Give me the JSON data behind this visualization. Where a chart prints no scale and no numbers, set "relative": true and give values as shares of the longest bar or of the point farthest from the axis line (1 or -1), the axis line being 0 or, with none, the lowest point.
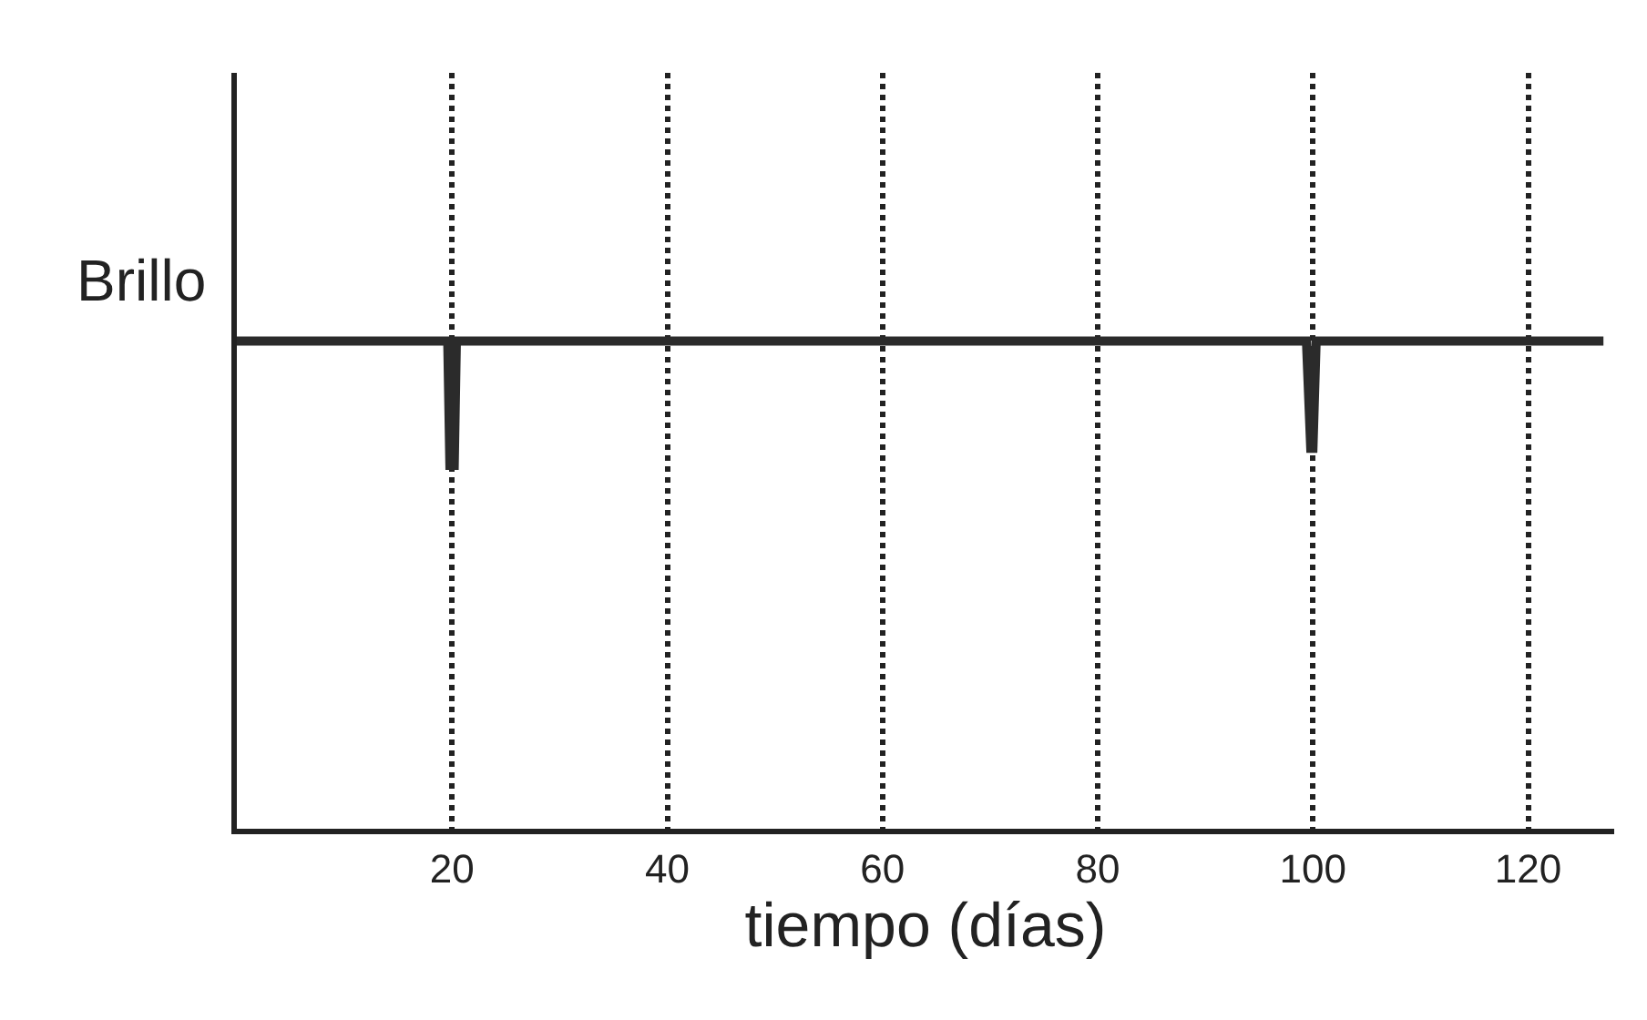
{
  "chart_data": {
    "type": "line",
    "relative": true,
    "xlabel": "tiempo (días)",
    "ylabel": "Brillo",
    "x": [
      0,
      19.6,
      19.8,
      20.2,
      20.4,
      99.4,
      99.8,
      100.0,
      100.3,
      127
    ],
    "series": [
      {
        "color": "#2b2b2b",
        "values": [
          1,
          1,
          0.745,
          0.745,
          1,
          1,
          0.78,
          0.78,
          1,
          1
        ]
      }
    ],
    "xlim": [
      0,
      128
    ],
    "xticks": [
      20,
      40,
      60,
      80,
      100,
      120
    ],
    "grid": "x",
    "line_style": "solid",
    "marker": "none"
  }
}
